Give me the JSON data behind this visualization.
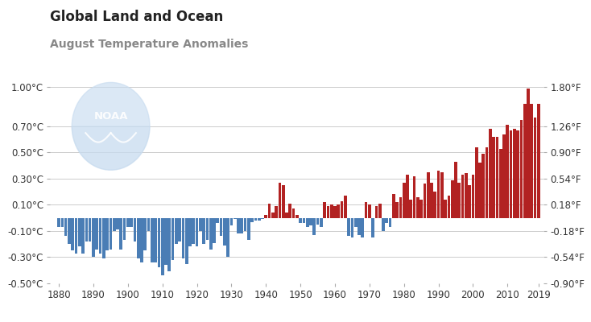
{
  "title": "Global Land and Ocean",
  "subtitle": "August Temperature Anomalies",
  "years": [
    1880,
    1881,
    1882,
    1883,
    1884,
    1885,
    1886,
    1887,
    1888,
    1889,
    1890,
    1891,
    1892,
    1893,
    1894,
    1895,
    1896,
    1897,
    1898,
    1899,
    1900,
    1901,
    1902,
    1903,
    1904,
    1905,
    1906,
    1907,
    1908,
    1909,
    1910,
    1911,
    1912,
    1913,
    1914,
    1915,
    1916,
    1917,
    1918,
    1919,
    1920,
    1921,
    1922,
    1923,
    1924,
    1925,
    1926,
    1927,
    1928,
    1929,
    1930,
    1931,
    1932,
    1933,
    1934,
    1935,
    1936,
    1937,
    1938,
    1939,
    1940,
    1941,
    1942,
    1943,
    1944,
    1945,
    1946,
    1947,
    1948,
    1949,
    1950,
    1951,
    1952,
    1953,
    1954,
    1955,
    1956,
    1957,
    1958,
    1959,
    1960,
    1961,
    1962,
    1963,
    1964,
    1965,
    1966,
    1967,
    1968,
    1969,
    1970,
    1971,
    1972,
    1973,
    1974,
    1975,
    1976,
    1977,
    1978,
    1979,
    1980,
    1981,
    1982,
    1983,
    1984,
    1985,
    1986,
    1987,
    1988,
    1989,
    1990,
    1991,
    1992,
    1993,
    1994,
    1995,
    1996,
    1997,
    1998,
    1999,
    2000,
    2001,
    2002,
    2003,
    2004,
    2005,
    2006,
    2007,
    2008,
    2009,
    2010,
    2011,
    2012,
    2013,
    2014,
    2015,
    2016,
    2017,
    2018,
    2019
  ],
  "anomalies": [
    -0.07,
    -0.07,
    -0.14,
    -0.2,
    -0.25,
    -0.27,
    -0.22,
    -0.27,
    -0.18,
    -0.18,
    -0.3,
    -0.24,
    -0.27,
    -0.31,
    -0.25,
    -0.24,
    -0.1,
    -0.09,
    -0.24,
    -0.17,
    -0.07,
    -0.07,
    -0.18,
    -0.31,
    -0.34,
    -0.25,
    -0.1,
    -0.34,
    -0.34,
    -0.38,
    -0.44,
    -0.36,
    -0.41,
    -0.32,
    -0.2,
    -0.18,
    -0.31,
    -0.35,
    -0.22,
    -0.2,
    -0.22,
    -0.1,
    -0.2,
    -0.17,
    -0.24,
    -0.19,
    -0.04,
    -0.14,
    -0.21,
    -0.3,
    -0.06,
    -0.01,
    -0.12,
    -0.12,
    -0.1,
    -0.17,
    -0.03,
    -0.02,
    -0.02,
    -0.01,
    0.02,
    0.11,
    0.04,
    0.09,
    0.27,
    0.25,
    0.04,
    0.11,
    0.07,
    0.02,
    -0.04,
    -0.04,
    -0.07,
    -0.06,
    -0.13,
    -0.05,
    -0.07,
    0.12,
    0.09,
    0.1,
    0.09,
    0.1,
    0.13,
    0.17,
    -0.14,
    -0.15,
    -0.07,
    -0.13,
    -0.15,
    0.12,
    0.1,
    -0.15,
    0.09,
    0.11,
    -0.1,
    -0.04,
    -0.07,
    0.18,
    0.12,
    0.16,
    0.27,
    0.33,
    0.14,
    0.32,
    0.16,
    0.14,
    0.26,
    0.35,
    0.27,
    0.2,
    0.36,
    0.35,
    0.14,
    0.17,
    0.29,
    0.43,
    0.27,
    0.33,
    0.34,
    0.25,
    0.33,
    0.54,
    0.42,
    0.49,
    0.54,
    0.68,
    0.62,
    0.62,
    0.53,
    0.64,
    0.71,
    0.67,
    0.68,
    0.67,
    0.75,
    0.87,
    0.99,
    0.87,
    0.77,
    0.87
  ],
  "ylim_celsius": [
    -0.5,
    1.05
  ],
  "yticks_celsius": [
    -0.5,
    -0.3,
    -0.1,
    0.1,
    0.3,
    0.5,
    0.7,
    1.0
  ],
  "ytick_labels_celsius": [
    "-0.50°C",
    "-0.30°C",
    "-0.10°C",
    "0.10°C",
    "0.30°C",
    "0.50°C",
    "0.70°C",
    "1.00°C"
  ],
  "yticks_fahrenheit_pos": [
    -0.5,
    -0.3,
    -0.1,
    0.1,
    0.3,
    0.5,
    0.7,
    1.0
  ],
  "ytick_labels_fahrenheit": [
    "-0.90°F",
    "-0.54°F",
    "-0.18°F",
    "0.18°F",
    "0.54°F",
    "0.90°F",
    "1.26°F",
    "1.80°F"
  ],
  "xticks": [
    1880,
    1890,
    1900,
    1910,
    1920,
    1930,
    1940,
    1950,
    1960,
    1970,
    1980,
    1990,
    2000,
    2010,
    2019
  ],
  "color_positive": "#B22222",
  "color_negative": "#4A7DB5",
  "background_color": "#FFFFFF",
  "grid_color": "#CCCCCC",
  "title_color": "#222222",
  "subtitle_color": "#888888",
  "noaa_logo_color": "#C8DCF0",
  "axis_label_size": 8.5,
  "title_size": 12,
  "subtitle_size": 10
}
